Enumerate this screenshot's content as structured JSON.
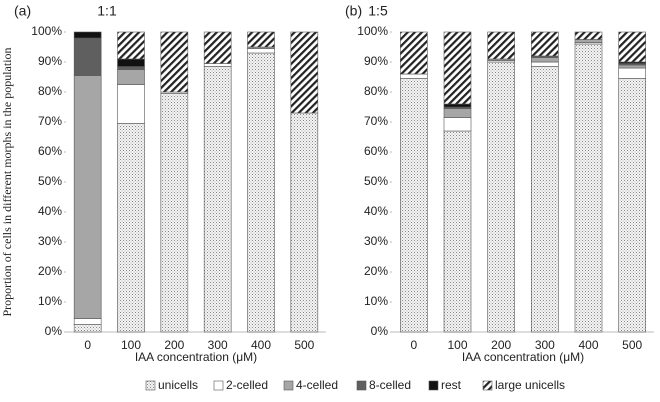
{
  "chart_data": [
    {
      "type": "bar",
      "stacked": true,
      "panel": "(a)",
      "title": "1:1",
      "y_label": "Proportion of cells in different morphs in the population",
      "x_label": "IAA concentration (μM)",
      "categories": [
        "0",
        "100",
        "200",
        "300",
        "400",
        "500"
      ],
      "ylim": [
        0,
        100
      ],
      "yticks": [
        {
          "value": 0,
          "label": "0%"
        },
        {
          "value": 10,
          "label": "10%"
        },
        {
          "value": 20,
          "label": "20%"
        },
        {
          "value": 30,
          "label": "30%"
        },
        {
          "value": 40,
          "label": "40%"
        },
        {
          "value": 50,
          "label": "50%"
        },
        {
          "value": 60,
          "label": "60%"
        },
        {
          "value": 70,
          "label": "70%"
        },
        {
          "value": 80,
          "label": "80%"
        },
        {
          "value": 90,
          "label": "90%"
        },
        {
          "value": 100,
          "label": "100%"
        }
      ],
      "series": [
        {
          "name": "unicells",
          "color": "#e4e4e4",
          "pattern": "dots",
          "values": [
            2.5,
            69.5,
            79.5,
            88.5,
            93,
            73
          ]
        },
        {
          "name": "2-celled",
          "color": "#ffffff",
          "pattern": "none",
          "values": [
            2,
            13,
            0.5,
            1,
            1.5,
            0
          ]
        },
        {
          "name": "4-celled",
          "color": "#a6a6a6",
          "pattern": "none",
          "values": [
            81,
            5,
            0,
            0,
            0.5,
            0
          ]
        },
        {
          "name": "8-celled",
          "color": "#5f5f5f",
          "pattern": "none",
          "values": [
            12.5,
            1,
            0,
            0,
            0,
            0
          ]
        },
        {
          "name": "rest",
          "color": "#111111",
          "pattern": "none",
          "values": [
            2,
            2.5,
            0,
            0,
            0,
            0
          ]
        },
        {
          "name": "large unicells",
          "color": "#ffffff",
          "pattern": "hatch",
          "values": [
            0,
            9,
            20,
            10.5,
            5,
            27
          ]
        }
      ]
    },
    {
      "type": "bar",
      "stacked": true,
      "panel": "(b)",
      "title": "1:5",
      "x_label": "IAA concentration (μM)",
      "categories": [
        "0",
        "100",
        "200",
        "300",
        "400",
        "500"
      ],
      "ylim": [
        0,
        100
      ],
      "yticks": [
        {
          "value": 0,
          "label": "0%"
        },
        {
          "value": 10,
          "label": "10%"
        },
        {
          "value": 20,
          "label": "20%"
        },
        {
          "value": 30,
          "label": "30%"
        },
        {
          "value": 40,
          "label": "40%"
        },
        {
          "value": 50,
          "label": "50%"
        },
        {
          "value": 60,
          "label": "60%"
        },
        {
          "value": 70,
          "label": "70%"
        },
        {
          "value": 80,
          "label": "80%"
        },
        {
          "value": 90,
          "label": "90%"
        },
        {
          "value": 100,
          "label": "100%"
        }
      ],
      "series": [
        {
          "values": [
            84.5,
            67,
            90,
            88.5,
            96,
            84.5
          ]
        },
        {
          "values": [
            1.5,
            4.5,
            0.5,
            1.5,
            0.5,
            3.5
          ]
        },
        {
          "values": [
            0,
            3,
            0.5,
            1.5,
            1,
            1
          ]
        },
        {
          "values": [
            0,
            0.5,
            0,
            0.5,
            0,
            0.5
          ]
        },
        {
          "values": [
            0,
            1,
            0,
            0,
            0,
            0.5
          ]
        },
        {
          "values": [
            14,
            24,
            9,
            8,
            2.5,
            10
          ]
        }
      ]
    }
  ]
}
